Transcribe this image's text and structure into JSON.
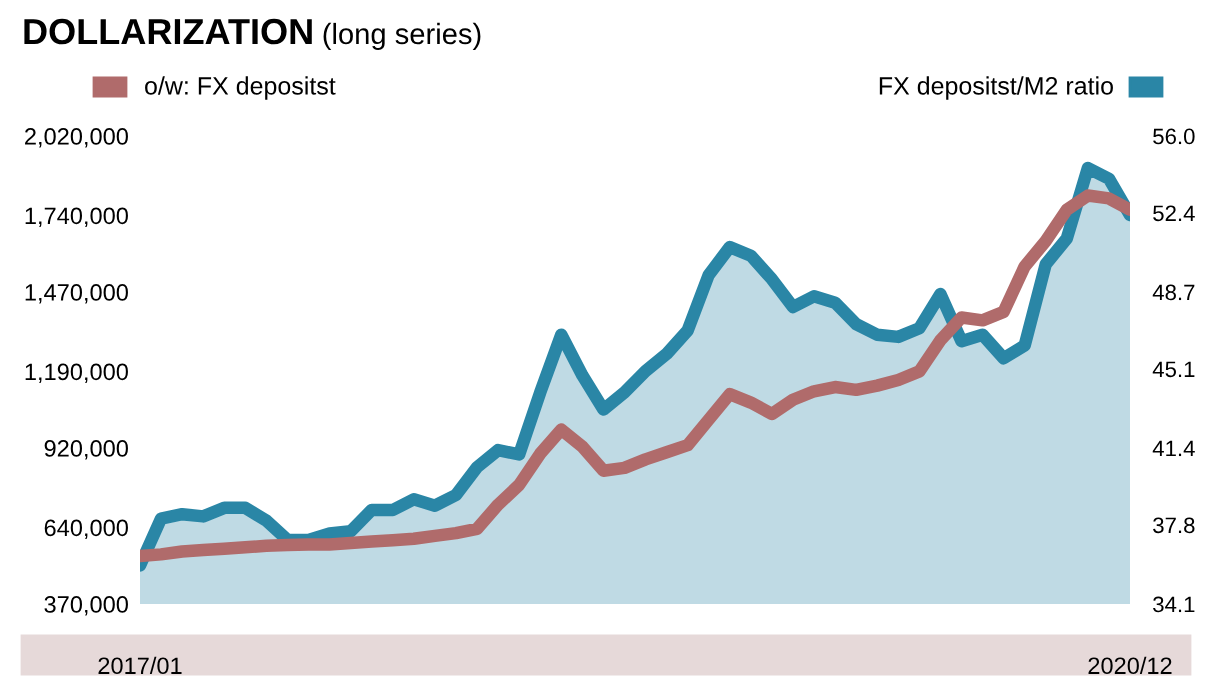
{
  "chart_data": {
    "type": "line",
    "title": "DOLLARIZATION",
    "subtitle": "(long series)",
    "categories": [
      "2017/01",
      null,
      null,
      null,
      null,
      null,
      null,
      null,
      null,
      null,
      null,
      null,
      null,
      null,
      null,
      null,
      null,
      null,
      null,
      null,
      null,
      null,
      null,
      null,
      null,
      null,
      null,
      null,
      null,
      null,
      null,
      null,
      null,
      null,
      null,
      null,
      null,
      null,
      null,
      null,
      null,
      null,
      null,
      null,
      null,
      null,
      null,
      "2020/12"
    ],
    "series": [
      {
        "name": "o/w: FX depositst",
        "color": "#b06b6b",
        "values": [
          539000,
          545000,
          555000,
          560000,
          565000,
          570000,
          575000,
          578000,
          580000,
          580000,
          585000,
          590000,
          595000,
          600000,
          610000,
          620000,
          635000,
          720000,
          790000,
          900000,
          985000,
          925000,
          840000,
          850000,
          880000,
          905000,
          930000,
          1020000,
          1110000,
          1080000,
          1040000,
          1090000,
          1120000,
          1135000,
          1125000,
          1140000,
          1160000,
          1190000,
          1300000,
          1380000,
          1370000,
          1400000,
          1560000,
          1650000,
          1760000,
          1810000,
          1800000,
          1760000
        ]
      },
      {
        "name": "FX depositst/M2 ratio",
        "color": "#2a86a6",
        "type": "area",
        "axis": "y2",
        "values": [
          35.9,
          38.1,
          38.3,
          38.2,
          38.6,
          38.6,
          38.0,
          37.1,
          37.1,
          37.4,
          37.5,
          38.5,
          38.5,
          39.0,
          38.7,
          39.2,
          40.5,
          41.3,
          41.1,
          44.0,
          46.7,
          44.8,
          43.2,
          44.0,
          45.0,
          45.8,
          46.9,
          49.5,
          50.8,
          50.4,
          49.3,
          48.0,
          48.5,
          48.2,
          47.2,
          46.7,
          46.6,
          47.0,
          48.6,
          46.4,
          46.7,
          45.6,
          46.2,
          50.0,
          51.2,
          54.5,
          54.0,
          52.3
        ]
      }
    ],
    "ylim": [
      370000,
      2020000
    ],
    "yticks": [
      {
        "value": 370000,
        "label": "370,000"
      },
      {
        "value": 640000,
        "label": "640,000"
      },
      {
        "value": 920000,
        "label": "920,000"
      },
      {
        "value": 1190000,
        "label": "1,190,000"
      },
      {
        "value": 1470000,
        "label": "1,470,000"
      },
      {
        "value": 1740000,
        "label": "1,740,000"
      },
      {
        "value": 2020000,
        "label": "2,020,000"
      }
    ],
    "y2lim": [
      34.1,
      56.0
    ],
    "y2ticks": [
      34.1,
      37.8,
      41.4,
      45.1,
      48.7,
      52.4,
      {
        "value": 56.0,
        "label": "56.0"
      }
    ],
    "grid": false,
    "legend": "top",
    "marker": "none",
    "line_style": "solid"
  }
}
